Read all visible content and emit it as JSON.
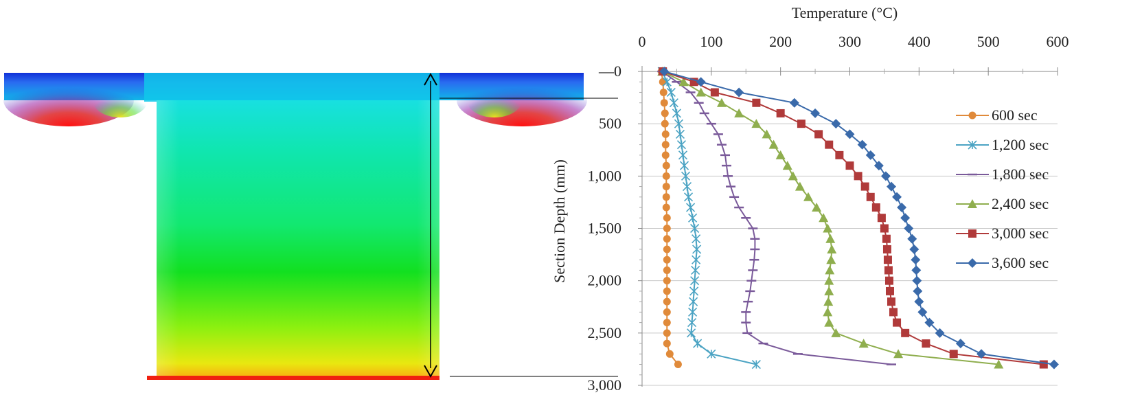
{
  "chart_data": {
    "type": "line",
    "xlabel": "Temperature (°C)",
    "ylabel": "Section Depth (mm)",
    "xlim": [
      0,
      600
    ],
    "ylim": [
      0,
      3000
    ],
    "x_ticks": [
      0,
      100,
      200,
      300,
      400,
      500,
      600
    ],
    "y_ticks": [
      0,
      500,
      1000,
      1500,
      2000,
      2500,
      3000
    ],
    "x_tick_labels": [
      "0",
      "100",
      "200",
      "300",
      "400",
      "500",
      "600"
    ],
    "y_tick_labels": [
      "0",
      "500",
      "1,000",
      "1,500",
      "2,000",
      "2,500",
      "3,000"
    ],
    "x_axis_position": "top",
    "y_axis_inverted": true,
    "grid": "horizontal",
    "legend_position": "right",
    "depths": [
      0,
      100,
      200,
      300,
      400,
      500,
      600,
      700,
      800,
      900,
      1000,
      1100,
      1200,
      1300,
      1400,
      1500,
      1600,
      1700,
      1800,
      1900,
      2000,
      2100,
      2200,
      2300,
      2400,
      2500,
      2600,
      2700,
      2800
    ],
    "series": [
      {
        "name": "600 sec",
        "color": "#e08a3a",
        "marker": "circle",
        "values": [
          28,
          30,
          31,
          32,
          33,
          33,
          34,
          34,
          34,
          35,
          35,
          35,
          35,
          35,
          36,
          36,
          36,
          36,
          36,
          36,
          36,
          36,
          36,
          36,
          36,
          36,
          36,
          40,
          52
        ]
      },
      {
        "name": "1,200 sec",
        "color": "#4ba3c3",
        "marker": "star",
        "values": [
          29,
          36,
          42,
          46,
          50,
          53,
          55,
          57,
          59,
          61,
          63,
          65,
          67,
          70,
          73,
          76,
          78,
          79,
          78,
          77,
          76,
          75,
          74,
          73,
          72,
          71,
          80,
          100,
          165
        ]
      },
      {
        "name": "1,800 sec",
        "color": "#7a5a9a",
        "marker": "dash",
        "values": [
          29,
          50,
          70,
          82,
          90,
          100,
          110,
          115,
          120,
          122,
          124,
          128,
          133,
          140,
          150,
          160,
          163,
          163,
          162,
          160,
          158,
          156,
          153,
          150,
          150,
          152,
          175,
          225,
          360
        ]
      },
      {
        "name": "2,400 sec",
        "color": "#8fae4e",
        "marker": "triangle",
        "values": [
          29,
          60,
          85,
          115,
          140,
          165,
          180,
          190,
          200,
          210,
          218,
          228,
          240,
          252,
          262,
          268,
          272,
          274,
          273,
          271,
          270,
          270,
          269,
          268,
          270,
          280,
          320,
          370,
          515
        ]
      },
      {
        "name": "3,000 sec",
        "color": "#b03a3a",
        "marker": "square",
        "values": [
          30,
          75,
          105,
          165,
          200,
          230,
          255,
          270,
          285,
          300,
          312,
          322,
          330,
          338,
          346,
          350,
          353,
          354,
          355,
          356,
          357,
          358,
          360,
          363,
          368,
          380,
          410,
          450,
          580
        ]
      },
      {
        "name": "3,600 sec",
        "color": "#3a6aaa",
        "marker": "diamond",
        "values": [
          32,
          85,
          140,
          220,
          250,
          280,
          300,
          318,
          330,
          342,
          352,
          360,
          368,
          375,
          380,
          385,
          390,
          393,
          395,
          396,
          397,
          398,
          400,
          405,
          415,
          430,
          460,
          490,
          595
        ]
      }
    ]
  }
}
